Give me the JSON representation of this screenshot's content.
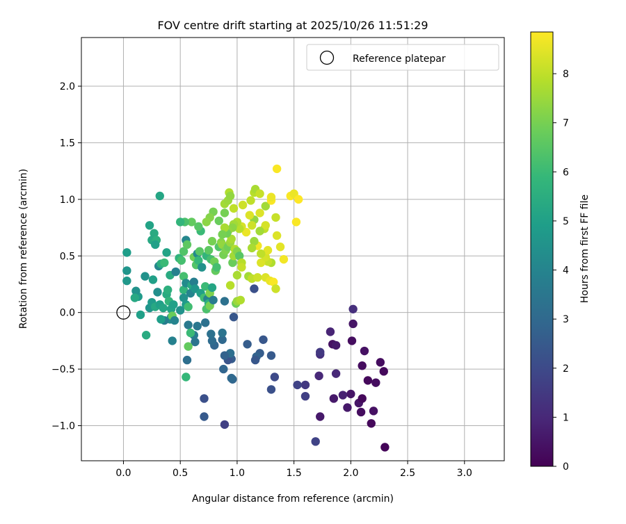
{
  "chart_data": {
    "type": "scatter",
    "title": "FOV centre drift starting at 2025/10/26 11:51:29",
    "xlabel": "Angular distance from reference (arcmin)",
    "ylabel": "Rotation from reference (arcmin)",
    "xlim": [
      -0.37,
      3.35
    ],
    "ylim": [
      -1.31,
      2.43
    ],
    "xticks": [
      0.0,
      0.5,
      1.0,
      1.5,
      2.0,
      2.5,
      3.0
    ],
    "xtick_labels": [
      "0.0",
      "0.5",
      "1.0",
      "1.5",
      "2.0",
      "2.5",
      "3.0"
    ],
    "yticks": [
      -1.0,
      -0.5,
      0.0,
      0.5,
      1.0,
      1.5,
      2.0
    ],
    "ytick_labels": [
      "−1.0",
      "−0.5",
      "0.0",
      "0.5",
      "1.0",
      "1.5",
      "2.0"
    ],
    "grid": true,
    "legend": {
      "position": "top-right",
      "entries": [
        "Reference platepar"
      ]
    },
    "reference_point": {
      "x": 0.0,
      "y": 0.0
    },
    "colorbar": {
      "label": "Hours from first FF file",
      "range": [
        0,
        8.85
      ],
      "ticks": [
        0,
        1,
        2,
        3,
        4,
        5,
        6,
        7,
        8
      ],
      "tick_labels": [
        "0",
        "1",
        "2",
        "3",
        "4",
        "5",
        "6",
        "7",
        "8"
      ],
      "colormap": "viridis",
      "colors": [
        "#440154",
        "#482878",
        "#3e4989",
        "#31688e",
        "#26828e",
        "#1f9e89",
        "#35b779",
        "#6ece58",
        "#b5de2b",
        "#fde725"
      ]
    },
    "points": [
      [
        2.3,
        -1.19,
        0.1
      ],
      [
        2.18,
        -0.98,
        0.2
      ],
      [
        2.09,
        -0.88,
        0.3
      ],
      [
        2.15,
        -0.6,
        0.2
      ],
      [
        2.22,
        -0.62,
        0.3
      ],
      [
        2.29,
        -0.52,
        0.2
      ],
      [
        2.26,
        -0.44,
        0.3
      ],
      [
        2.2,
        -0.87,
        0.4
      ],
      [
        2.07,
        -0.8,
        0.5
      ],
      [
        2.1,
        -0.76,
        0.2
      ],
      [
        2.1,
        -0.47,
        0.3
      ],
      [
        2.12,
        -0.34,
        0.4
      ],
      [
        2.01,
        -0.25,
        0.3
      ],
      [
        2.02,
        -0.1,
        0.5
      ],
      [
        2.02,
        0.03,
        1.2
      ],
      [
        2.0,
        -0.72,
        0.5
      ],
      [
        1.97,
        -0.84,
        0.6
      ],
      [
        1.93,
        -0.73,
        0.8
      ],
      [
        1.85,
        -0.76,
        0.6
      ],
      [
        1.84,
        -0.28,
        0.4
      ],
      [
        1.87,
        -0.29,
        0.6
      ],
      [
        1.82,
        -0.17,
        0.9
      ],
      [
        1.87,
        -0.54,
        1.0
      ],
      [
        1.73,
        -0.37,
        1.2
      ],
      [
        1.73,
        -0.35,
        1.5
      ],
      [
        1.72,
        -0.56,
        1.0
      ],
      [
        1.73,
        -0.92,
        0.6
      ],
      [
        1.69,
        -1.14,
        1.8
      ],
      [
        1.6,
        -0.64,
        1.5
      ],
      [
        1.6,
        -0.74,
        1.7
      ],
      [
        1.53,
        -0.64,
        1.8
      ],
      [
        1.33,
        -0.57,
        2.0
      ],
      [
        1.3,
        -0.68,
        2.2
      ],
      [
        1.3,
        -0.38,
        2.5
      ],
      [
        1.23,
        -0.24,
        2.4
      ],
      [
        1.2,
        -0.36,
        2.6
      ],
      [
        1.17,
        -0.39,
        2.8
      ],
      [
        1.15,
        0.21,
        2.2
      ],
      [
        1.09,
        -0.28,
        2.6
      ],
      [
        1.16,
        -0.42,
        2.4
      ],
      [
        0.96,
        -0.59,
        2.9
      ],
      [
        0.95,
        -0.58,
        3.0
      ],
      [
        0.95,
        -0.41,
        2.6
      ],
      [
        0.92,
        -0.42,
        2.3
      ],
      [
        0.94,
        -0.36,
        3.2
      ],
      [
        0.89,
        -0.38,
        2.8
      ],
      [
        0.89,
        -0.99,
        1.7
      ],
      [
        0.88,
        -0.5,
        2.9
      ],
      [
        0.87,
        -0.24,
        3.0
      ],
      [
        0.87,
        -0.18,
        3.4
      ],
      [
        0.97,
        -0.04,
        2.4
      ],
      [
        0.89,
        0.1,
        3.3
      ],
      [
        0.71,
        -0.76,
        2.2
      ],
      [
        0.71,
        -0.92,
        2.5
      ],
      [
        0.56,
        -0.42,
        3.2
      ],
      [
        0.8,
        -0.29,
        2.9
      ],
      [
        0.78,
        -0.25,
        3.1
      ],
      [
        0.77,
        -0.19,
        3.3
      ],
      [
        0.72,
        -0.09,
        3.3
      ],
      [
        0.65,
        -0.12,
        3.5
      ],
      [
        0.63,
        -0.26,
        3.4
      ],
      [
        0.62,
        -0.2,
        3.7
      ],
      [
        0.57,
        -0.11,
        3.6
      ],
      [
        0.55,
        -0.57,
        5.9
      ],
      [
        0.57,
        -0.3,
        6.7
      ],
      [
        0.59,
        -0.18,
        6.0
      ],
      [
        0.43,
        -0.25,
        3.9
      ],
      [
        0.42,
        -0.04,
        4.0
      ],
      [
        0.41,
        -0.06,
        4.3
      ],
      [
        0.36,
        -0.07,
        3.8
      ],
      [
        0.2,
        -0.2,
        5.4
      ],
      [
        0.15,
        -0.02,
        5.0
      ],
      [
        0.13,
        0.14,
        4.8
      ],
      [
        0.11,
        0.19,
        4.5
      ],
      [
        0.03,
        0.28,
        4.7
      ],
      [
        0.03,
        0.37,
        4.6
      ],
      [
        0.03,
        0.53,
        4.9
      ],
      [
        0.19,
        0.32,
        4.5
      ],
      [
        0.26,
        0.29,
        5.0
      ],
      [
        0.23,
        0.04,
        4.6
      ],
      [
        0.25,
        0.09,
        4.8
      ],
      [
        0.28,
        0.05,
        5.3
      ],
      [
        0.3,
        0.18,
        4.4
      ],
      [
        0.32,
        0.07,
        5.0
      ],
      [
        0.33,
        -0.06,
        4.9
      ],
      [
        0.35,
        0.04,
        5.2
      ],
      [
        0.38,
        0.16,
        5.4
      ],
      [
        0.39,
        0.2,
        5.6
      ],
      [
        0.4,
        0.1,
        5.8
      ],
      [
        0.42,
        0.03,
        5.1
      ],
      [
        0.43,
        -0.03,
        6.8
      ],
      [
        0.45,
        -0.07,
        4.0
      ],
      [
        0.31,
        0.41,
        4.1
      ],
      [
        0.33,
        0.43,
        5.5
      ],
      [
        0.36,
        0.44,
        6.0
      ],
      [
        0.38,
        0.53,
        5.1
      ],
      [
        0.41,
        0.33,
        5.4
      ],
      [
        0.46,
        0.36,
        3.9
      ],
      [
        0.49,
        0.48,
        5.7
      ],
      [
        0.51,
        0.46,
        6.2
      ],
      [
        0.53,
        0.54,
        6.4
      ],
      [
        0.55,
        0.64,
        4.1
      ],
      [
        0.56,
        0.6,
        6.6
      ],
      [
        0.53,
        0.2,
        5.8
      ],
      [
        0.53,
        0.32,
        6.2
      ],
      [
        0.55,
        0.26,
        4.3
      ],
      [
        0.53,
        0.13,
        4.5
      ],
      [
        0.55,
        0.07,
        4.8
      ],
      [
        0.57,
        0.05,
        6.1
      ],
      [
        0.59,
        0.17,
        4.0
      ],
      [
        0.6,
        0.24,
        5.3
      ],
      [
        0.62,
        0.27,
        3.8
      ],
      [
        0.63,
        0.21,
        4.6
      ],
      [
        0.62,
        0.49,
        6.9
      ],
      [
        0.64,
        0.42,
        6.4
      ],
      [
        0.65,
        0.52,
        4.2
      ],
      [
        0.66,
        0.46,
        5.9
      ],
      [
        0.67,
        0.54,
        6.5
      ],
      [
        0.68,
        0.17,
        5.0
      ],
      [
        0.69,
        0.4,
        4.5
      ],
      [
        0.71,
        0.13,
        6.1
      ],
      [
        0.72,
        0.23,
        6.0
      ],
      [
        0.73,
        0.03,
        6.3
      ],
      [
        0.74,
        0.12,
        3.9
      ],
      [
        0.75,
        0.08,
        5.6
      ],
      [
        0.76,
        0.06,
        7.0
      ],
      [
        0.76,
        0.17,
        7.1
      ],
      [
        0.78,
        0.22,
        5.2
      ],
      [
        0.79,
        0.11,
        3.7
      ],
      [
        0.73,
        0.5,
        5.8
      ],
      [
        0.75,
        0.55,
        6.6
      ],
      [
        0.77,
        0.47,
        6.2
      ],
      [
        0.78,
        0.63,
        7.0
      ],
      [
        0.8,
        0.45,
        6.9
      ],
      [
        0.81,
        0.37,
        6.7
      ],
      [
        0.82,
        0.4,
        6.2
      ],
      [
        0.84,
        0.58,
        6.4
      ],
      [
        0.86,
        0.62,
        7.2
      ],
      [
        0.87,
        0.6,
        7.4
      ],
      [
        0.88,
        0.51,
        7.0
      ],
      [
        0.9,
        0.55,
        7.1
      ],
      [
        0.92,
        0.58,
        6.9
      ],
      [
        0.94,
        0.62,
        7.5
      ],
      [
        0.95,
        0.65,
        7.7
      ],
      [
        0.96,
        0.44,
        6.8
      ],
      [
        0.97,
        0.5,
        7.6
      ],
      [
        0.98,
        0.56,
        7.8
      ],
      [
        1.0,
        0.54,
        7.2
      ],
      [
        1.02,
        0.5,
        6.5
      ],
      [
        1.04,
        0.44,
        7.9
      ],
      [
        0.94,
        0.24,
        7.9
      ],
      [
        0.99,
        0.08,
        6.9
      ],
      [
        1.0,
        0.1,
        7.5
      ],
      [
        1.03,
        0.11,
        7.8
      ],
      [
        1.0,
        0.33,
        7.7
      ],
      [
        1.04,
        0.4,
        8.1
      ],
      [
        1.1,
        0.32,
        7.6
      ],
      [
        1.13,
        0.3,
        8.0
      ],
      [
        1.18,
        0.31,
        8.2
      ],
      [
        1.25,
        0.31,
        8.4
      ],
      [
        1.29,
        0.28,
        8.6
      ],
      [
        1.32,
        0.27,
        8.8
      ],
      [
        1.34,
        0.21,
        8.2
      ],
      [
        1.3,
        0.44,
        7.8
      ],
      [
        1.27,
        0.45,
        8.1
      ],
      [
        1.21,
        0.44,
        8.4
      ],
      [
        1.25,
        0.49,
        8.3
      ],
      [
        1.27,
        0.55,
        8.5
      ],
      [
        1.21,
        0.52,
        8.0
      ],
      [
        1.18,
        0.59,
        8.7
      ],
      [
        1.15,
        0.63,
        7.5
      ],
      [
        1.13,
        0.57,
        7.7
      ],
      [
        1.38,
        0.58,
        8.5
      ],
      [
        1.41,
        0.47,
        8.7
      ],
      [
        1.35,
        0.68,
        8.4
      ],
      [
        1.34,
        0.84,
        8.1
      ],
      [
        1.52,
        0.8,
        8.8
      ],
      [
        1.24,
        0.74,
        8.0
      ],
      [
        1.25,
        0.77,
        8.3
      ],
      [
        1.2,
        0.72,
        7.6
      ],
      [
        1.15,
        0.82,
        7.4
      ],
      [
        1.13,
        0.77,
        8.2
      ],
      [
        1.11,
        0.86,
        8.4
      ],
      [
        1.08,
        0.71,
        8.6
      ],
      [
        1.04,
        0.76,
        8.3
      ],
      [
        1.02,
        0.74,
        7.9
      ],
      [
        1.0,
        0.8,
        7.8
      ],
      [
        0.97,
        0.78,
        7.6
      ],
      [
        0.96,
        0.75,
        7.3
      ],
      [
        0.92,
        0.72,
        7.4
      ],
      [
        0.91,
        0.7,
        6.9
      ],
      [
        0.89,
        0.75,
        7.7
      ],
      [
        0.87,
        0.69,
        7.0
      ],
      [
        0.84,
        0.81,
        6.8
      ],
      [
        0.79,
        0.89,
        7.0
      ],
      [
        0.76,
        0.84,
        7.2
      ],
      [
        0.73,
        0.8,
        7.3
      ],
      [
        0.68,
        0.72,
        6.0
      ],
      [
        0.66,
        0.76,
        6.5
      ],
      [
        0.6,
        0.8,
        6.7
      ],
      [
        0.54,
        0.8,
        6.3
      ],
      [
        0.5,
        0.8,
        5.8
      ],
      [
        0.89,
        0.88,
        7.0
      ],
      [
        0.89,
        0.96,
        7.6
      ],
      [
        0.92,
        0.99,
        7.5
      ],
      [
        0.93,
        1.06,
        7.8
      ],
      [
        0.94,
        1.03,
        7.4
      ],
      [
        0.97,
        0.92,
        8.0
      ],
      [
        1.05,
        0.95,
        8.2
      ],
      [
        1.12,
        0.99,
        8.0
      ],
      [
        1.15,
        1.06,
        7.9
      ],
      [
        1.16,
        1.09,
        7.7
      ],
      [
        1.2,
        1.05,
        8.1
      ],
      [
        1.2,
        0.88,
        8.4
      ],
      [
        1.25,
        0.94,
        7.6
      ],
      [
        1.3,
        0.99,
        8.8
      ],
      [
        1.3,
        1.02,
        8.6
      ],
      [
        1.35,
        1.27,
        8.8
      ],
      [
        1.47,
        1.03,
        8.8
      ],
      [
        1.5,
        1.05,
        8.6
      ],
      [
        1.54,
        1.0,
        8.9
      ],
      [
        0.32,
        1.03,
        5.2
      ],
      [
        0.23,
        0.77,
        5.1
      ],
      [
        0.27,
        0.7,
        5.4
      ],
      [
        0.25,
        0.64,
        5.3
      ],
      [
        0.29,
        0.64,
        5.6
      ],
      [
        0.28,
        0.6,
        5.0
      ],
      [
        0.1,
        0.13,
        5.3
      ],
      [
        0.5,
        0.02,
        4.5
      ],
      [
        0.44,
        0.07,
        5.0
      ]
    ]
  }
}
